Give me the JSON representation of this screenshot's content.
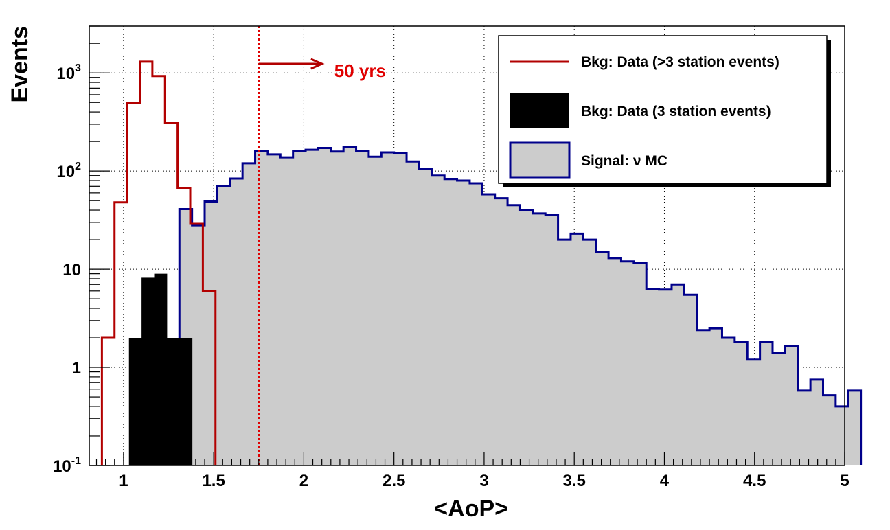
{
  "chart_data": {
    "type": "histogram",
    "xlabel": "<AoP>",
    "ylabel": "Events",
    "xlim": [
      0.81,
      5.0
    ],
    "ylim": [
      0.1,
      3000
    ],
    "yscale": "log",
    "grid": true,
    "x_ticks": [
      {
        "value": 1,
        "label": "1"
      },
      {
        "value": 1.5,
        "label": "1.5"
      },
      {
        "value": 2,
        "label": "2"
      },
      {
        "value": 2.5,
        "label": "2.5"
      },
      {
        "value": 3,
        "label": "3"
      },
      {
        "value": 3.5,
        "label": "3.5"
      },
      {
        "value": 4,
        "label": "4"
      },
      {
        "value": 4.5,
        "label": "4.5"
      },
      {
        "value": 5,
        "label": "5"
      }
    ],
    "y_ticks": [
      {
        "value": 0.1,
        "base": "10",
        "exp": "-1"
      },
      {
        "value": 1,
        "base": "1",
        "exp": ""
      },
      {
        "value": 10,
        "base": "10",
        "exp": ""
      },
      {
        "value": 100,
        "base": "10",
        "exp": "2"
      },
      {
        "value": 1000,
        "base": "10",
        "exp": "3"
      }
    ],
    "bin_width": 0.07,
    "series": [
      {
        "name": "Bkg: Data (>3 station events)",
        "style": "line",
        "color": "#b20000",
        "x_start": 0.88,
        "values": [
          2,
          48,
          490,
          1300,
          930,
          310,
          67,
          29,
          6
        ]
      },
      {
        "name": "Bkg: Data (3 station events)",
        "style": "filled",
        "color": "#000000",
        "x_start": 1.03,
        "values": [
          2,
          8.2,
          9,
          2,
          2
        ]
      },
      {
        "name": "Signal: ν MC",
        "style": "filled-outline",
        "color": "#00008b",
        "fill": "#cccccc",
        "x_start": 1.31,
        "values": [
          41,
          28,
          49,
          70,
          84,
          120,
          160,
          148,
          138,
          160,
          165,
          172,
          158,
          175,
          160,
          140,
          155,
          152,
          125,
          105,
          90,
          83,
          80,
          75,
          58,
          53,
          45,
          40,
          37,
          36,
          20,
          23,
          20,
          15,
          13,
          12,
          11.5,
          6.3,
          6.2,
          7,
          5.5,
          2.4,
          2.5,
          2,
          1.8,
          1.2,
          1.8,
          1.4,
          1.65,
          0.58,
          0.75,
          0.52,
          0.4,
          0.58
        ]
      }
    ],
    "cut": {
      "x": 1.75,
      "label": "50 yrs",
      "color": "#e00000"
    },
    "legend_position": "top-right"
  }
}
